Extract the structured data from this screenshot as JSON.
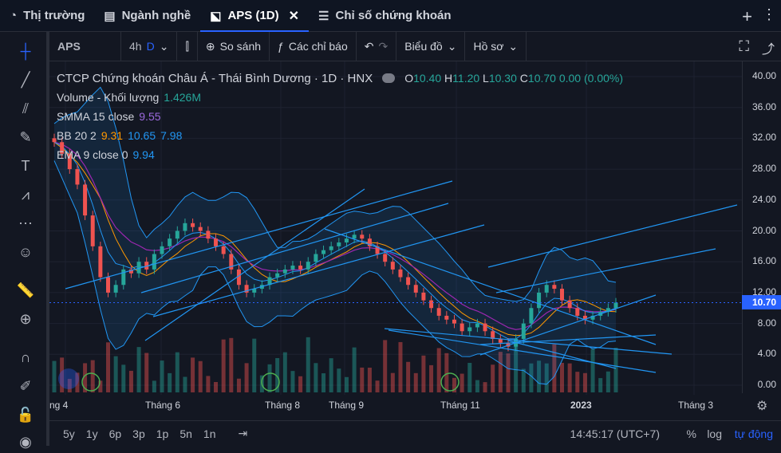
{
  "tabs": [
    {
      "label": "Thị trường",
      "icon": "pie-chart-icon"
    },
    {
      "label": "Ngành nghề",
      "icon": "list-icon"
    },
    {
      "label": "APS (1D)",
      "icon": "chart-icon",
      "active": true
    },
    {
      "label": "Chỉ số chứng khoán",
      "icon": "menu-icon"
    }
  ],
  "toolbar": {
    "symbol": "APS",
    "interval_prefix": "4h",
    "interval": "D",
    "compare": "So sánh",
    "indicators": "Các chỉ báo",
    "chart_type": "Biểu đồ",
    "profile": "Hồ sơ"
  },
  "legend": {
    "title": "CTCP Chứng khoán Châu Á - Thái Bình Dương · 1D · HNX",
    "o_label": "O",
    "o": "10.40",
    "h_label": "H",
    "h": "11.20",
    "l_label": "L",
    "l": "10.30",
    "c_label": "C",
    "c": "10.70",
    "change": "0.00 (0.00%)",
    "volume_label": "Volume - Khối lượng",
    "volume_value": "1.426M",
    "smma_label": "SMMA 15 close",
    "smma_value": "9.55",
    "bb_label": "BB 20 2",
    "bb_basis": "9.31",
    "bb_upper": "10.65",
    "bb_lower": "7.98",
    "ema_label": "EMA 9 close 0",
    "ema_value": "9.94"
  },
  "price_axis": [
    "40.00",
    "36.00",
    "32.00",
    "28.00",
    "24.00",
    "20.00",
    "16.00",
    "12.00",
    "8.00",
    "4.00",
    "0.00"
  ],
  "current_price": "10.70",
  "time_axis": [
    "ng 4",
    "Tháng 6",
    "Tháng 8",
    "Tháng 9",
    "Tháng 11",
    "2023",
    "Tháng 3"
  ],
  "bottom": {
    "ranges": [
      "5y",
      "1y",
      "6p",
      "3p",
      "1p",
      "5n",
      "1n"
    ],
    "time": "14:45:17 (UTC+7)",
    "percent": "%",
    "log": "log",
    "auto": "tự động"
  },
  "colors": {
    "up": "#26a69a",
    "down": "#ef5350",
    "accent": "#2962ff",
    "bb": "#2196f3",
    "ema": "#2196f3",
    "smma": "#9c27b0",
    "bb_basis": "#ff9800"
  },
  "chart_data": {
    "type": "candlestick",
    "symbol": "APS",
    "exchange": "HNX",
    "interval": "1D",
    "ylim": [
      0,
      40
    ],
    "last_close": 10.7,
    "close_series": [
      31.5,
      30,
      28,
      26,
      22,
      18,
      14,
      12,
      13,
      15,
      14.5,
      16,
      15,
      17,
      18,
      19,
      20,
      21,
      20.5,
      20,
      19,
      18,
      17,
      15,
      13,
      12,
      12.5,
      13,
      14,
      14.5,
      15,
      15.5,
      15,
      16,
      17,
      17.5,
      18,
      18.5,
      19,
      19.5,
      19,
      18,
      17,
      16,
      15,
      14,
      13,
      12,
      11,
      10,
      9,
      8.5,
      8,
      7,
      7.5,
      8,
      7,
      6,
      5.5,
      5,
      6,
      8,
      10,
      12,
      13,
      12.5,
      11,
      10,
      9,
      8.5,
      9,
      9.5,
      10,
      10.7
    ]
  }
}
